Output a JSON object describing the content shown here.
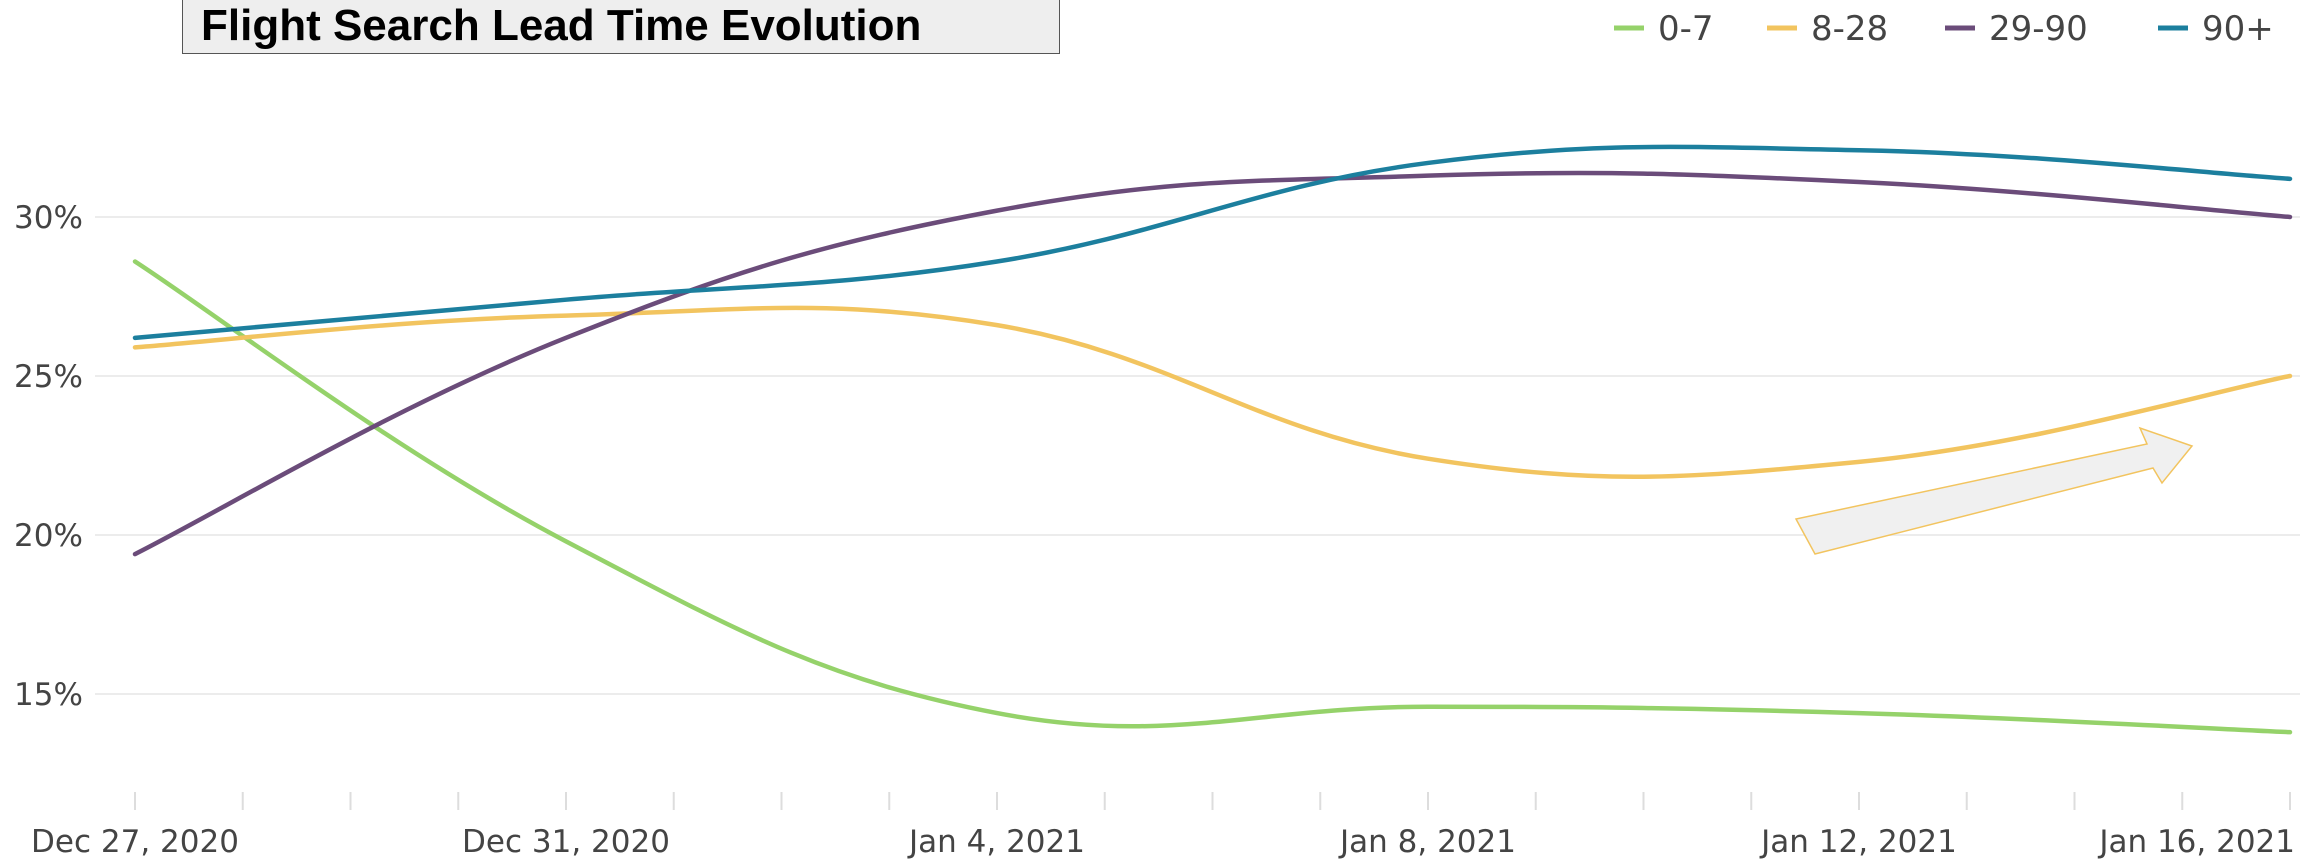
{
  "chart_data": {
    "type": "line",
    "title": "Flight Search Lead Time Evolution",
    "x": [
      "Dec 27, 2020",
      "Dec 31, 2020",
      "Jan 4, 2021",
      "Jan 8, 2021",
      "Jan 12, 2021",
      "Jan 16, 2021"
    ],
    "x_tick_labels": [
      "Dec 27, 2020",
      "Dec 31, 2020",
      "Jan 4, 2021",
      "Jan 8, 2021",
      "Jan 12, 2021",
      "Jan 16, 2021"
    ],
    "y_tick_labels": [
      "30%",
      "25%",
      "20%",
      "15%"
    ],
    "y_ticks": [
      30,
      25,
      20,
      15
    ],
    "ylim": [
      12.5,
      33
    ],
    "xlabel": "",
    "ylabel": "",
    "grid": true,
    "legend_position": "top-right",
    "series": [
      {
        "name": "0-7",
        "color": "#95d26a",
        "values": [
          28.6,
          19.8,
          14.4,
          14.6,
          14.4,
          13.8
        ]
      },
      {
        "name": "8-28",
        "color": "#f2c45f",
        "values": [
          25.9,
          26.9,
          26.6,
          22.4,
          22.3,
          25.0
        ]
      },
      {
        "name": "29-90",
        "color": "#6b4c7a",
        "values": [
          19.4,
          26.2,
          30.2,
          31.3,
          31.1,
          30.0
        ]
      },
      {
        "name": "90+",
        "color": "#1c7f9e",
        "values": [
          26.2,
          27.4,
          28.6,
          31.7,
          32.1,
          31.2
        ]
      }
    ],
    "annotation": {
      "type": "arrow",
      "fill": "#f0f0f0",
      "stroke": "#f2c45f"
    }
  }
}
